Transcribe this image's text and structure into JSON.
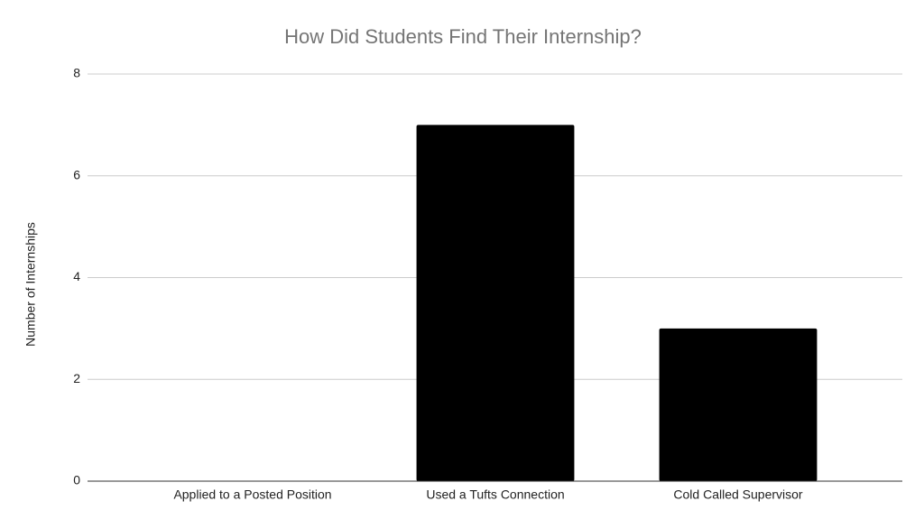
{
  "chart_data": {
    "type": "bar",
    "title": "How Did Students Find Their Internship?",
    "y_label": "Number of Internships",
    "categories": [
      "Applied to a Posted Position",
      "Used a Tufts Connection",
      "Cold Called Supervisor"
    ],
    "values": [
      0,
      7,
      3
    ],
    "color": "#000000",
    "ylim": [
      0,
      8
    ],
    "yticks": [
      0,
      2,
      4,
      6,
      8
    ],
    "grid": true
  }
}
